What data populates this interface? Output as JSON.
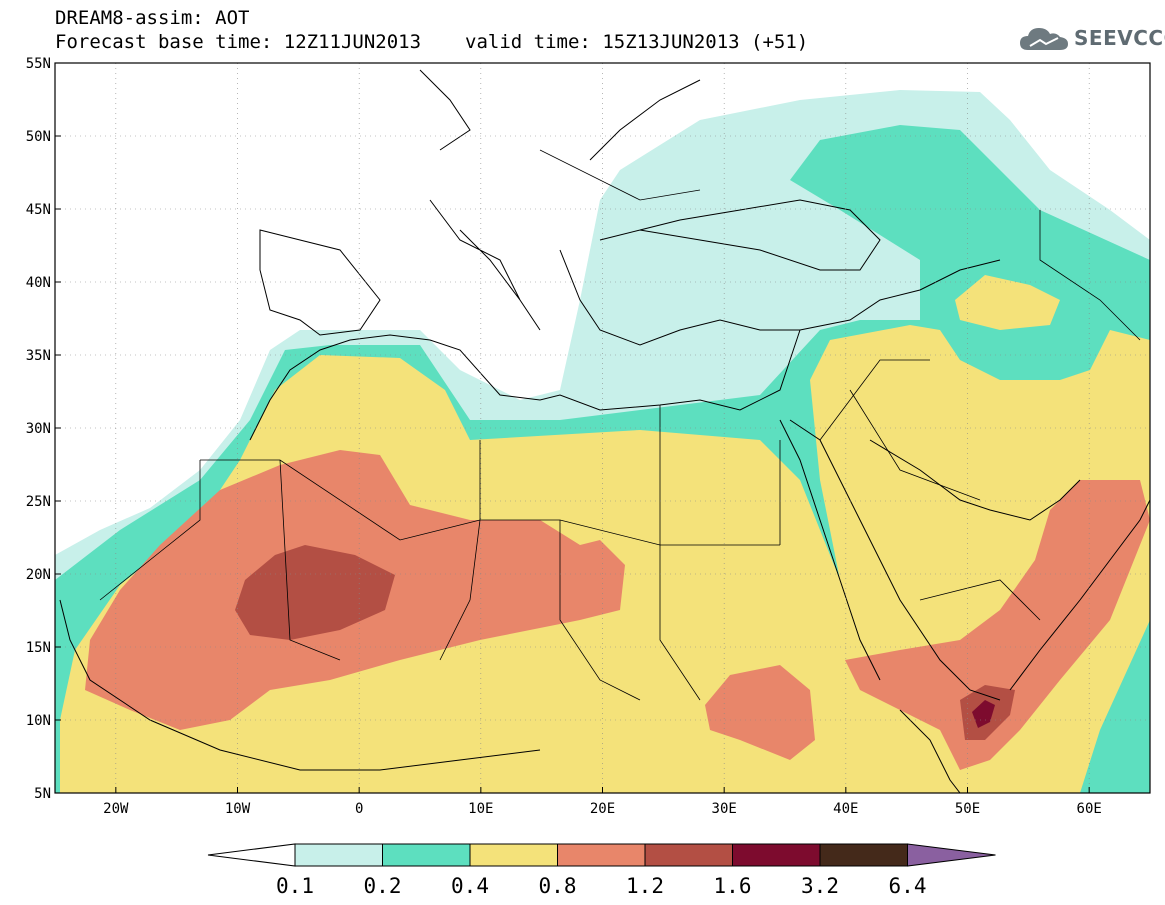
{
  "header": {
    "line1": "DREAM8-assim: AOT",
    "forecast_base": "Forecast base time: 12Z11JUN2013",
    "valid_time": "valid time: 15Z13JUN2013 (+51)"
  },
  "logo": {
    "text": "SEEVCCC",
    "icon": "cloud-logo-icon"
  },
  "map": {
    "lat_labels": [
      "55N",
      "50N",
      "45N",
      "40N",
      "35N",
      "30N",
      "25N",
      "20N",
      "15N",
      "10N",
      "5N"
    ],
    "lon_labels": [
      "20W",
      "10W",
      "0",
      "10E",
      "20E",
      "30E",
      "40E",
      "50E",
      "60E"
    ],
    "lat_range": [
      5,
      55
    ],
    "lon_range": [
      -25,
      65
    ]
  },
  "legend": {
    "ticks": [
      "0.1",
      "0.2",
      "0.4",
      "0.8",
      "1.2",
      "1.6",
      "3.2",
      "6.4"
    ],
    "colors": [
      "#ffffff",
      "#c8f0ea",
      "#5ddfbf",
      "#f4e27a",
      "#e8866a",
      "#b34f44",
      "#7d0b2e",
      "#44291a",
      "#8a60a0"
    ]
  }
}
